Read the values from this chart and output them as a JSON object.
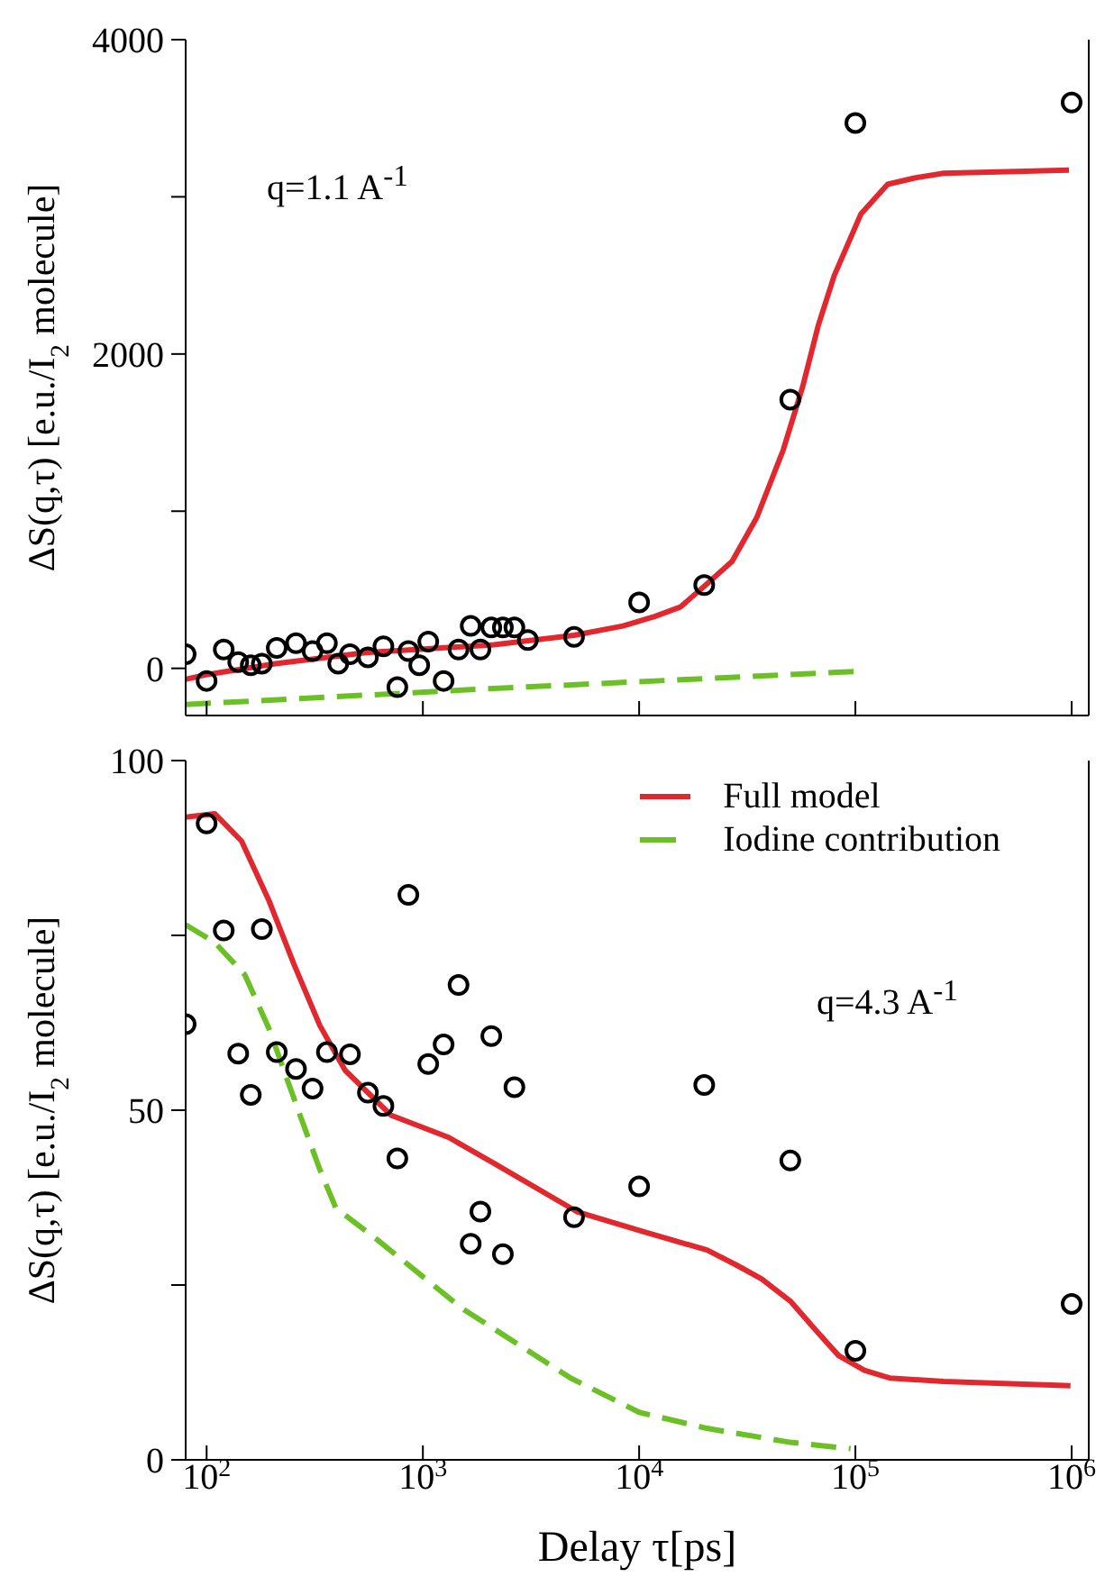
{
  "chart_data": [
    {
      "type": "scatter",
      "ylabel": "ΔS(q,τ) [e.u./I$_{2}$ molecule]",
      "annotations": [
        "q=1.1 A$^{-1}$"
      ],
      "log": "x",
      "xlim": [
        80,
        1200000
      ],
      "xticks": [
        100,
        1000,
        10000,
        100000,
        1000000
      ],
      "ylim": [
        -300,
        4000
      ],
      "yticks": [
        0,
        {
          "value": 1000,
          "label": null
        },
        2000,
        {
          "value": 3000,
          "label": null
        },
        4000
      ],
      "tick_labels": "y",
      "legend": false,
      "series": [
        {
          "color": "#000000",
          "marker": "circle",
          "x": [
            80,
            100,
            120,
            140,
            160,
            180,
            211,
            259,
            309,
            360,
            406,
            460,
            557,
            657,
            762,
            857,
            962,
            1059,
            1247,
            1462,
            1664,
            1845,
            2072,
            2344,
            2650,
            3057,
            5000,
            10000,
            20000,
            50000,
            100000,
            1000000
          ],
          "values": [
            90,
            -80,
            120,
            40,
            20,
            30,
            130,
            160,
            110,
            160,
            30,
            90,
            70,
            140,
            -120,
            110,
            20,
            170,
            -80,
            120,
            270,
            120,
            260,
            260,
            260,
            180,
            200,
            420,
            530,
            1710,
            3470,
            3600
          ]
        },
        {
          "type": "line",
          "color": "#e0282e",
          "line_style": "solid",
          "x": [
            80,
            100,
            208,
            543,
            2130,
            5000,
            8420,
            11800,
            15500,
            20300,
            26900,
            35000,
            46400,
            57000,
            67300,
            79900,
            106000,
            141000,
            188000,
            256000,
            506000,
            972000
          ],
          "values": [
            -70,
            -40,
            30,
            100,
            150,
            210,
            270,
            330,
            390,
            530,
            680,
            960,
            1390,
            1790,
            2180,
            2500,
            2890,
            3080,
            3120,
            3150,
            3160,
            3170
          ]
        },
        {
          "type": "line",
          "color": "#6ac025",
          "line_style": "dashed",
          "x": [
            80,
            2000,
            100000
          ],
          "values": [
            -230,
            -130,
            -20
          ]
        }
      ]
    },
    {
      "type": "scatter",
      "xlabel": "Delay τ[ps]",
      "ylabel": "ΔS(q,τ) [e.u./I$_{2}$ molecule]",
      "annotations": [
        "q=4.3 A$^{-1}$"
      ],
      "log": "x",
      "xlim": [
        80,
        1200000
      ],
      "xticks": [
        {
          "value": 100,
          "label": "10$^{2}$"
        },
        {
          "value": 1000,
          "label": "10$^{3}$"
        },
        {
          "value": 10000,
          "label": "10$^{4}$"
        },
        {
          "value": 100000,
          "label": "10$^{5}$"
        },
        {
          "value": 1000000,
          "label": "10$^{6}$"
        }
      ],
      "ylim": [
        0,
        100
      ],
      "yticks": [
        0,
        {
          "value": 25,
          "label": null
        },
        50,
        {
          "value": 75,
          "label": null
        },
        100
      ],
      "legend": "top right",
      "series": [
        {
          "color": "#000000",
          "marker": "circle",
          "x": [
            80,
            100,
            120,
            140,
            160,
            180,
            211,
            259,
            309,
            360,
            460,
            557,
            657,
            762,
            857,
            1059,
            1247,
            1462,
            1664,
            1845,
            2072,
            2344,
            2650,
            5000,
            10000,
            20000,
            50000,
            100000,
            1000000
          ],
          "values": [
            62.3,
            91.0,
            75.7,
            58.1,
            52.2,
            75.9,
            58.3,
            55.9,
            53.1,
            58.3,
            58.0,
            52.5,
            50.6,
            43.1,
            80.8,
            56.6,
            59.4,
            67.9,
            30.9,
            35.5,
            60.6,
            29.4,
            53.3,
            34.7,
            39.1,
            53.6,
            42.8,
            15.6,
            22.3
          ]
        },
        {
          "type": "line",
          "name": "Full model",
          "color": "#e0282e",
          "line_style": "solid",
          "x": [
            80,
            109,
            145,
            194,
            254,
            334,
            437,
            711,
            1318,
            2130,
            5150,
            10000,
            20600,
            28000,
            36800,
            50000,
            65800,
            83700,
            110000,
            144000,
            256000,
            988000
          ],
          "values": [
            91.9,
            92.4,
            88.5,
            80.0,
            70.8,
            62.1,
            55.7,
            49.3,
            46.1,
            42.4,
            35.5,
            32.8,
            30.0,
            27.9,
            25.9,
            22.7,
            18.5,
            14.9,
            12.8,
            11.7,
            11.2,
            10.6
          ]
        },
        {
          "type": "line",
          "name": "Iodine contribution",
          "color": "#6ac025",
          "line_style": "dashed",
          "x": [
            80,
            109,
            150,
            194,
            254,
            334,
            396,
            620,
            1510,
            4820,
            10000,
            20600,
            50000,
            95000
          ],
          "values": [
            76.5,
            74.0,
            69.4,
            61.7,
            51.6,
            41.5,
            36.0,
            31.4,
            21.7,
            11.7,
            6.8,
            4.5,
            2.5,
            1.6
          ]
        }
      ]
    }
  ]
}
